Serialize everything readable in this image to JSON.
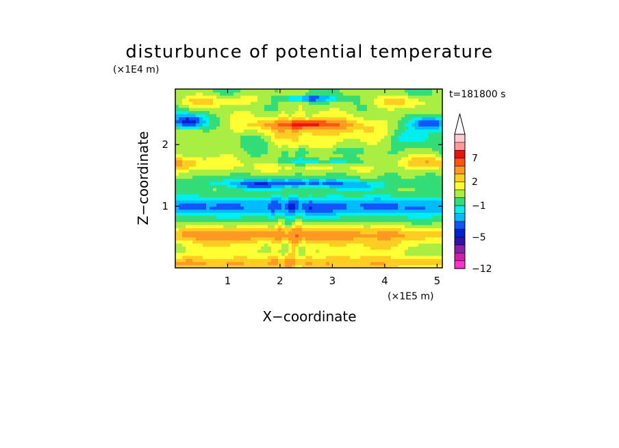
{
  "chart_data": {
    "type": "heatmap",
    "title": "disturbunce of potential temperature",
    "time_label": "t=181800 s",
    "xlabel": "X−coordinate",
    "ylabel": "Z−coordinate",
    "x_unit": "(×1E5 m)",
    "y_unit": "(×1E4 m)",
    "xlim": [
      0,
      5.1
    ],
    "ylim": [
      0,
      2.9
    ],
    "x_ticks": [
      {
        "v": 1,
        "label": "1"
      },
      {
        "v": 2,
        "label": "2"
      },
      {
        "v": 3,
        "label": "3"
      },
      {
        "v": 4,
        "label": "4"
      },
      {
        "v": 5,
        "label": "5"
      }
    ],
    "y_ticks": [
      {
        "v": 1,
        "label": "1"
      },
      {
        "v": 2,
        "label": "2"
      }
    ],
    "colorbar": {
      "levels": [
        -12,
        -10,
        -8,
        -6,
        -5,
        -4,
        -3,
        -2,
        -1,
        0,
        1,
        2,
        3,
        5,
        7,
        9,
        11
      ],
      "labels": [
        {
          "v": -12,
          "label": "−12"
        },
        {
          "v": -5,
          "label": "−5"
        },
        {
          "v": -1,
          "label": "−1"
        },
        {
          "v": 2,
          "label": "2"
        },
        {
          "v": 7,
          "label": "7"
        }
      ],
      "colors": [
        "#ff33cc",
        "#cc22aa",
        "#8822aa",
        "#3311aa",
        "#0022cc",
        "#1155ff",
        "#00bbff",
        "#00eeee",
        "#33dd77",
        "#aaee44",
        "#ffff33",
        "#ffcc22",
        "#ff9922",
        "#ff5511",
        "#ee1111",
        "#ff9999",
        "#ffcccc"
      ],
      "extend": "max"
    },
    "features": [
      {
        "x": 0,
        "z": 0.55,
        "sx": 9,
        "sz": 0.12,
        "a": 3.2
      },
      {
        "x": 0.5,
        "z": 0.08,
        "sx": 9,
        "sz": 0.12,
        "a": 3.0
      },
      {
        "x": 2.6,
        "z": 0.42,
        "sx": 1.2,
        "sz": 0.25,
        "a": 1.5
      },
      {
        "x": 0.7,
        "z": 0.35,
        "sx": 0.6,
        "sz": 0.15,
        "a": 1.8
      },
      {
        "x": 4.0,
        "z": 0.35,
        "sx": 0.6,
        "sz": 0.15,
        "a": 1.8
      },
      {
        "x": 2.5,
        "z": 1.0,
        "sx": 9,
        "sz": 0.16,
        "a": -3.2
      },
      {
        "x": 2.6,
        "z": 0.95,
        "sx": 0.6,
        "sz": 0.15,
        "a": -0.6
      },
      {
        "x": 2.2,
        "z": 1.38,
        "sx": 1.5,
        "sz": 0.07,
        "a": -3.5
      },
      {
        "x": 1.6,
        "z": 1.33,
        "sx": 0.35,
        "sz": 0.06,
        "a": -2.0
      },
      {
        "x": 3.5,
        "z": 1.32,
        "sx": 0.4,
        "sz": 0.06,
        "a": -2.0
      },
      {
        "x": 0,
        "z": 1.7,
        "sx": 1.0,
        "sz": 0.12,
        "a": 3.0
      },
      {
        "x": 5.1,
        "z": 1.7,
        "sx": 1.0,
        "sz": 0.12,
        "a": 3.0
      },
      {
        "x": 2.5,
        "z": 1.65,
        "sx": 1.2,
        "sz": 0.1,
        "a": 1.5
      },
      {
        "x": 2.8,
        "z": 1.72,
        "sx": 0.9,
        "sz": 0.06,
        "a": -2.3
      },
      {
        "x": 2.85,
        "z": 1.9,
        "sx": 0.6,
        "sz": 0.05,
        "a": -1.0
      },
      {
        "x": 2.6,
        "z": 2.25,
        "sx": 1.8,
        "sz": 0.28,
        "a": 2.5
      },
      {
        "x": 2.5,
        "z": 2.33,
        "sx": 0.65,
        "sz": 0.07,
        "a": 5.8
      },
      {
        "x": 0.25,
        "z": 2.38,
        "sx": 0.35,
        "sz": 0.12,
        "a": -5.0
      },
      {
        "x": 4.85,
        "z": 2.35,
        "sx": 0.35,
        "sz": 0.12,
        "a": -5.0
      },
      {
        "x": 1.5,
        "z": 2.1,
        "sx": 0.4,
        "sz": 0.15,
        "a": -1.5
      },
      {
        "x": 4.5,
        "z": 2.1,
        "sx": 0.5,
        "sz": 0.15,
        "a": -2.0
      },
      {
        "x": 2.55,
        "z": 2.75,
        "sx": 0.5,
        "sz": 0.05,
        "a": -4.0
      },
      {
        "x": 0.5,
        "z": 2.7,
        "sx": 0.6,
        "sz": 0.1,
        "a": 2.0
      },
      {
        "x": 4.3,
        "z": 2.7,
        "sx": 0.6,
        "sz": 0.1,
        "a": 2.0
      },
      {
        "x": 1.5,
        "z": 2.75,
        "sx": 0.5,
        "sz": 0.1,
        "a": 1.2
      }
    ]
  }
}
